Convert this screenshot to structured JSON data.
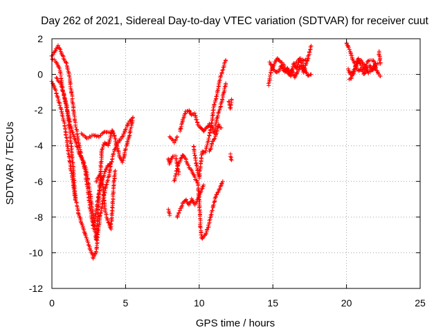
{
  "chart_data": {
    "type": "scatter",
    "title": "Day 262 of 2021, Sidereal Day-to-day VTEC variation (SDTVAR) for receiver cuut",
    "xlabel": "GPS time / hours",
    "ylabel": "SDTVAR / TECUs",
    "xlim": [
      0,
      25
    ],
    "ylim": [
      -12,
      2
    ],
    "xticks": [
      0,
      5,
      10,
      15,
      20,
      25
    ],
    "yticks": [
      -12,
      -10,
      -8,
      -6,
      -4,
      -2,
      0,
      2
    ],
    "grid": true,
    "marker": "+",
    "series_color": "#ff0000",
    "tracks": [
      [
        [
          0.0,
          1.0
        ],
        [
          0.2,
          1.3
        ],
        [
          0.4,
          1.6
        ],
        [
          0.6,
          1.3
        ],
        [
          0.8,
          0.9
        ],
        [
          1.0,
          0.6
        ],
        [
          1.2,
          -0.2
        ],
        [
          1.4,
          -1.5
        ],
        [
          1.6,
          -2.8
        ],
        [
          1.8,
          -3.8
        ],
        [
          2.0,
          -4.6
        ],
        [
          2.2,
          -5.2
        ],
        [
          2.4,
          -6.2
        ],
        [
          2.6,
          -7.5
        ],
        [
          2.8,
          -8.6
        ],
        [
          3.0,
          -7.6
        ],
        [
          3.2,
          -6.6
        ],
        [
          3.4,
          -6.0
        ],
        [
          3.6,
          -5.4
        ],
        [
          3.8,
          -5.1
        ],
        [
          4.0,
          -5.0
        ]
      ],
      [
        [
          0.0,
          0.9
        ],
        [
          0.3,
          0.7
        ],
        [
          0.5,
          0.4
        ],
        [
          0.7,
          -0.6
        ],
        [
          0.9,
          -1.5
        ],
        [
          1.1,
          -2.3
        ],
        [
          1.3,
          -3.0
        ],
        [
          1.5,
          -3.5
        ],
        [
          1.7,
          -4.0
        ],
        [
          1.9,
          -4.5
        ],
        [
          2.1,
          -4.8
        ],
        [
          2.3,
          -5.3
        ],
        [
          2.5,
          -6.2
        ],
        [
          2.7,
          -7.3
        ],
        [
          2.9,
          -8.6
        ],
        [
          3.0,
          -9.3
        ],
        [
          3.1,
          -8.2
        ],
        [
          3.2,
          -6.8
        ],
        [
          3.3,
          -5.4
        ],
        [
          3.4,
          -4.2
        ],
        [
          3.6,
          -3.8
        ],
        [
          3.8,
          -4.0
        ],
        [
          4.0,
          -3.5
        ],
        [
          4.1,
          -3.1
        ],
        [
          4.2,
          -3.3
        ],
        [
          4.4,
          -4.0
        ],
        [
          4.6,
          -4.6
        ],
        [
          4.8,
          -4.9
        ],
        [
          5.0,
          -4.2
        ],
        [
          5.2,
          -3.6
        ],
        [
          5.4,
          -2.9
        ],
        [
          5.5,
          -2.4
        ]
      ],
      [
        [
          0.0,
          -0.4
        ],
        [
          0.2,
          -0.8
        ],
        [
          0.4,
          -1.3
        ],
        [
          0.6,
          -1.9
        ],
        [
          0.8,
          -2.6
        ],
        [
          1.0,
          -3.6
        ],
        [
          1.2,
          -4.8
        ],
        [
          1.4,
          -5.9
        ],
        [
          1.6,
          -7.0
        ],
        [
          1.8,
          -7.8
        ],
        [
          2.0,
          -8.3
        ],
        [
          2.2,
          -8.8
        ],
        [
          2.4,
          -9.3
        ],
        [
          2.6,
          -9.8
        ],
        [
          2.8,
          -10.3
        ],
        [
          3.0,
          -10.0
        ],
        [
          3.1,
          -9.0
        ],
        [
          3.3,
          -7.8
        ],
        [
          3.5,
          -6.9
        ],
        [
          3.7,
          -6.2
        ],
        [
          3.9,
          -5.6
        ],
        [
          4.0,
          -5.0
        ],
        [
          4.2,
          -4.4
        ],
        [
          4.4,
          -3.9
        ],
        [
          4.6,
          -3.7
        ],
        [
          4.8,
          -3.5
        ],
        [
          5.0,
          -3.1
        ],
        [
          5.2,
          -2.7
        ],
        [
          5.4,
          -2.5
        ]
      ],
      [
        [
          0.3,
          -0.2
        ],
        [
          0.6,
          -0.5
        ],
        [
          1.0,
          -1.7
        ],
        [
          1.2,
          -3.1
        ],
        [
          1.4,
          -4.8
        ],
        [
          1.5,
          -6.0
        ],
        [
          1.6,
          -6.9
        ]
      ],
      [
        [
          2.0,
          -3.3
        ],
        [
          2.4,
          -3.6
        ],
        [
          2.8,
          -3.4
        ],
        [
          3.2,
          -3.5
        ],
        [
          3.6,
          -3.2
        ],
        [
          4.0,
          -3.3
        ]
      ],
      [
        [
          3.0,
          -6.0
        ],
        [
          3.2,
          -5.7
        ],
        [
          3.4,
          -5.8
        ],
        [
          3.6,
          -7.6
        ],
        [
          3.8,
          -8.2
        ],
        [
          4.0,
          -8.7
        ],
        [
          4.1,
          -7.6
        ],
        [
          4.2,
          -6.1
        ],
        [
          4.3,
          -5.4
        ]
      ],
      [
        [
          7.9,
          -7.6
        ],
        [
          8.0,
          -7.9
        ]
      ],
      [
        [
          7.9,
          -4.7
        ],
        [
          8.0,
          -5.0
        ],
        [
          8.2,
          -4.6
        ],
        [
          8.4,
          -4.6
        ],
        [
          8.6,
          -5.6
        ]
      ],
      [
        [
          8.0,
          -3.5
        ],
        [
          8.3,
          -3.8
        ],
        [
          8.5,
          -3.5
        ]
      ],
      [
        [
          8.3,
          -6.0
        ],
        [
          8.5,
          -5.3
        ],
        [
          8.7,
          -4.8
        ],
        [
          8.9,
          -4.5
        ],
        [
          9.1,
          -4.8
        ],
        [
          9.3,
          -5.2
        ],
        [
          9.5,
          -5.4
        ],
        [
          9.7,
          -5.8
        ],
        [
          9.9,
          -6.1
        ],
        [
          10.0,
          -6.9
        ],
        [
          10.1,
          -8.8
        ],
        [
          10.2,
          -9.2
        ],
        [
          10.4,
          -9.0
        ],
        [
          10.6,
          -8.6
        ],
        [
          10.8,
          -7.9
        ],
        [
          11.0,
          -7.2
        ],
        [
          11.2,
          -6.7
        ],
        [
          11.4,
          -6.4
        ],
        [
          11.6,
          -6.0
        ]
      ],
      [
        [
          8.5,
          -8.0
        ],
        [
          8.7,
          -7.6
        ],
        [
          8.9,
          -7.2
        ],
        [
          9.1,
          -7.0
        ],
        [
          9.3,
          -7.3
        ],
        [
          9.5,
          -7.0
        ],
        [
          9.7,
          -7.3
        ],
        [
          9.9,
          -7.0
        ],
        [
          10.1,
          -6.6
        ],
        [
          10.3,
          -6.2
        ]
      ],
      [
        [
          8.7,
          -3.2
        ],
        [
          8.9,
          -2.5
        ],
        [
          9.1,
          -2.1
        ],
        [
          9.3,
          -2.0
        ],
        [
          9.5,
          -2.3
        ],
        [
          9.7,
          -2.2
        ],
        [
          9.9,
          -2.8
        ],
        [
          10.1,
          -3.0
        ],
        [
          10.3,
          -3.2
        ],
        [
          10.5,
          -3.0
        ],
        [
          10.7,
          -2.8
        ],
        [
          10.9,
          -3.0
        ],
        [
          11.0,
          -3.3
        ],
        [
          11.2,
          -2.5
        ],
        [
          11.4,
          -1.9
        ],
        [
          11.6,
          -1.3
        ],
        [
          11.8,
          -0.5
        ]
      ],
      [
        [
          9.6,
          -4.0
        ],
        [
          9.8,
          -5.0
        ],
        [
          10.0,
          -5.8
        ],
        [
          10.2,
          -4.3
        ],
        [
          10.4,
          -4.4
        ],
        [
          10.6,
          -3.8
        ],
        [
          10.8,
          -3.0
        ],
        [
          11.0,
          -1.8
        ],
        [
          11.2,
          -1.1
        ],
        [
          11.4,
          -0.3
        ],
        [
          11.6,
          0.3
        ],
        [
          11.8,
          0.8
        ]
      ],
      [
        [
          10.7,
          -4.3
        ],
        [
          10.9,
          -3.8
        ],
        [
          11.1,
          -3.5
        ],
        [
          11.3,
          -2.8
        ],
        [
          11.5,
          -3.0
        ]
      ],
      [
        [
          12.0,
          -1.5
        ],
        [
          12.1,
          -1.9
        ],
        [
          12.2,
          -1.4
        ]
      ],
      [
        [
          12.1,
          -4.5
        ],
        [
          12.2,
          -4.8
        ]
      ],
      [
        [
          14.7,
          -0.6
        ],
        [
          14.8,
          -0.2
        ],
        [
          14.9,
          0.3
        ],
        [
          15.1,
          0.6
        ],
        [
          15.3,
          0.9
        ],
        [
          15.5,
          0.7
        ],
        [
          15.7,
          0.6
        ],
        [
          15.9,
          0.2
        ],
        [
          16.1,
          0.0
        ],
        [
          16.3,
          0.3
        ],
        [
          16.5,
          -0.2
        ],
        [
          16.7,
          0.2
        ],
        [
          16.9,
          0.5
        ],
        [
          17.1,
          0.1
        ],
        [
          17.3,
          0.7
        ],
        [
          17.5,
          1.3
        ],
        [
          17.6,
          1.6
        ]
      ],
      [
        [
          14.8,
          0.7
        ],
        [
          15.0,
          0.3
        ],
        [
          15.2,
          0.1
        ],
        [
          15.4,
          0.2
        ],
        [
          15.6,
          0.5
        ],
        [
          15.8,
          0.1
        ],
        [
          16.0,
          0.4
        ],
        [
          16.2,
          -0.1
        ],
        [
          16.4,
          0.6
        ],
        [
          16.6,
          0.3
        ],
        [
          16.8,
          0.8
        ],
        [
          17.0,
          0.6
        ],
        [
          17.2,
          0.2
        ],
        [
          17.4,
          -0.1
        ],
        [
          17.6,
          0.0
        ]
      ],
      [
        [
          16.5,
          0.6
        ],
        [
          16.8,
          0.9
        ],
        [
          17.1,
          0.8
        ],
        [
          17.4,
          0.9
        ]
      ],
      [
        [
          20.0,
          1.8
        ],
        [
          20.2,
          1.4
        ],
        [
          20.4,
          0.9
        ],
        [
          20.6,
          0.5
        ],
        [
          20.8,
          0.2
        ],
        [
          21.0,
          0.3
        ],
        [
          21.2,
          0.0
        ],
        [
          21.4,
          0.4
        ],
        [
          21.6,
          0.5
        ],
        [
          21.8,
          0.2
        ],
        [
          22.0,
          0.6
        ],
        [
          22.2,
          0.6
        ]
      ],
      [
        [
          20.1,
          0.3
        ],
        [
          20.3,
          0.0
        ],
        [
          20.5,
          0.2
        ],
        [
          20.7,
          0.6
        ],
        [
          20.9,
          0.8
        ],
        [
          21.1,
          0.7
        ],
        [
          21.3,
          0.4
        ],
        [
          21.5,
          0.1
        ],
        [
          21.7,
          0.3
        ],
        [
          21.9,
          0.5
        ],
        [
          22.1,
          0.1
        ],
        [
          22.3,
          -0.1
        ]
      ],
      [
        [
          20.2,
          -0.3
        ],
        [
          20.4,
          -0.1
        ],
        [
          20.6,
          0.4
        ],
        [
          20.8,
          0.9
        ],
        [
          21.0,
          0.5
        ],
        [
          21.2,
          0.3
        ],
        [
          21.5,
          0.8
        ],
        [
          21.8,
          0.8
        ],
        [
          22.0,
          0.4
        ]
      ],
      [
        [
          22.2,
          1.3
        ],
        [
          22.3,
          0.6
        ]
      ]
    ]
  }
}
